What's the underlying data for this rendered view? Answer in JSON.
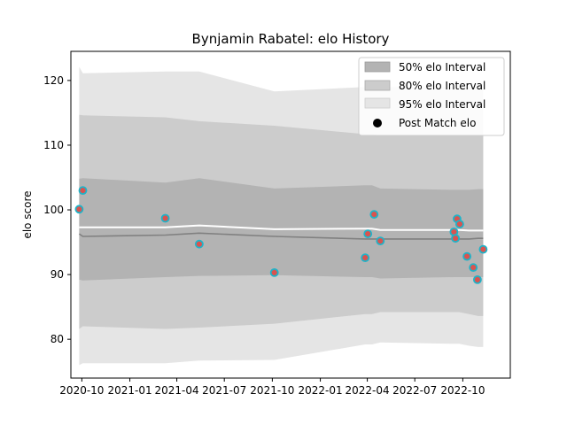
{
  "chart_data": {
    "type": "line",
    "title": "Bynjamin Rabatel: elo History",
    "xlabel": "",
    "ylabel": "elo score",
    "x_ticks": [
      "2020-10",
      "2021-01",
      "2021-04",
      "2021-07",
      "2021-10",
      "2022-01",
      "2022-04",
      "2022-07",
      "2022-10"
    ],
    "y_ticks": [
      80,
      90,
      100,
      110,
      120
    ],
    "xlim": [
      "2020-09-10",
      "2022-12-31"
    ],
    "ylim": [
      74,
      124.5
    ],
    "grid": false,
    "legend_position": "top-right",
    "legend": {
      "band50": "50% elo Interval",
      "band80": "80% elo Interval",
      "band95": "95% elo Interval",
      "points": "Post Match elo"
    },
    "colors": {
      "band50": "#b3b3b3",
      "band80": "#cccccc",
      "band95": "#e5e5e5",
      "mean_line": "#808080",
      "median_line": "#ffffff",
      "point_fill": "#d9534f",
      "point_edge": "#1fb3c8"
    },
    "intervals": {
      "dates": [
        "2020-09-26",
        "2020-10-03",
        "2021-03-10",
        "2021-05-14",
        "2021-10-05",
        "2022-03-28",
        "2022-04-10",
        "2022-04-26",
        "2022-09-14",
        "2022-09-24",
        "2022-10-13",
        "2022-10-30",
        "2022-11-09"
      ],
      "band95_lower": [
        76.0,
        76.3,
        76.3,
        76.7,
        76.8,
        79.2,
        79.2,
        79.5,
        79.3,
        79.3,
        79.0,
        78.8,
        78.8
      ],
      "band95_upper": [
        122.1,
        121.1,
        121.4,
        121.4,
        118.3,
        119.0,
        119.0,
        119.0,
        119.0,
        119.0,
        119.0,
        119.0,
        119.0
      ],
      "band80_lower": [
        81.6,
        82.0,
        81.6,
        81.8,
        82.4,
        83.9,
        83.9,
        84.2,
        84.2,
        84.2,
        83.9,
        83.6,
        83.6
      ],
      "band80_upper": [
        114.7,
        114.6,
        114.3,
        113.7,
        113.0,
        111.7,
        111.7,
        111.5,
        111.5,
        111.5,
        111.5,
        111.5,
        111.5
      ],
      "band50_lower": [
        89.2,
        89.1,
        89.6,
        89.8,
        89.9,
        89.6,
        89.6,
        89.4,
        89.6,
        89.6,
        89.6,
        89.6,
        89.6
      ],
      "band50_upper": [
        104.8,
        104.9,
        104.2,
        104.9,
        103.3,
        103.8,
        103.8,
        103.3,
        103.1,
        103.1,
        103.1,
        103.2,
        103.2
      ],
      "mean": [
        96.3,
        95.9,
        96.1,
        96.4,
        95.9,
        95.5,
        95.5,
        95.5,
        95.5,
        95.5,
        95.5,
        95.6,
        95.6
      ],
      "median": [
        97.3,
        97.3,
        97.3,
        97.6,
        97.0,
        97.1,
        97.1,
        96.9,
        96.9,
        96.9,
        96.8,
        96.8,
        96.8
      ]
    },
    "points": [
      {
        "x": "2020-09-26",
        "y": 100.1
      },
      {
        "x": "2020-10-03",
        "y": 103.0
      },
      {
        "x": "2021-03-10",
        "y": 98.7
      },
      {
        "x": "2021-05-14",
        "y": 94.7
      },
      {
        "x": "2021-10-05",
        "y": 90.3
      },
      {
        "x": "2022-03-28",
        "y": 92.6
      },
      {
        "x": "2022-04-02",
        "y": 96.3
      },
      {
        "x": "2022-04-14",
        "y": 99.3
      },
      {
        "x": "2022-04-26",
        "y": 95.2
      },
      {
        "x": "2022-09-14",
        "y": 96.6
      },
      {
        "x": "2022-09-17",
        "y": 95.6
      },
      {
        "x": "2022-09-20",
        "y": 98.6
      },
      {
        "x": "2022-09-25",
        "y": 97.8
      },
      {
        "x": "2022-10-09",
        "y": 92.8
      },
      {
        "x": "2022-10-21",
        "y": 91.1
      },
      {
        "x": "2022-10-29",
        "y": 89.2
      },
      {
        "x": "2022-11-09",
        "y": 93.9
      }
    ]
  }
}
